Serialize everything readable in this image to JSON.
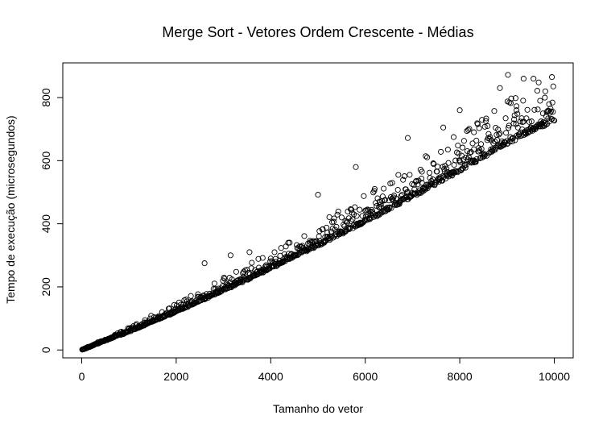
{
  "chart_data": {
    "type": "scatter",
    "title": "Merge Sort - Vetores Ordem Crescente - Médias",
    "xlabel": "Tamanho do vetor",
    "ylabel": "Tempo de execução (microsegundos)",
    "xlim": [
      -400,
      10400
    ],
    "ylim": [
      -25,
      910
    ],
    "x_ticks": [
      0,
      2000,
      4000,
      6000,
      8000,
      10000
    ],
    "y_ticks": [
      0,
      200,
      400,
      600,
      800
    ],
    "x_tick_labels": [
      "0",
      "2000",
      "4000",
      "6000",
      "8000",
      "10000"
    ],
    "y_tick_labels": [
      "0",
      "200",
      "400",
      "600",
      "800"
    ],
    "grid": false,
    "legend": "none",
    "marker": "open-circle",
    "x_range": [
      10,
      10000
    ],
    "x_step": 10,
    "series": [
      {
        "points": [
          [
            0,
            0
          ],
          [
            500,
            30
          ],
          [
            1000,
            58
          ],
          [
            1500,
            90
          ],
          [
            2000,
            120
          ],
          [
            2500,
            155
          ],
          [
            3000,
            188
          ],
          [
            3500,
            222
          ],
          [
            4000,
            258
          ],
          [
            4500,
            295
          ],
          [
            5000,
            330
          ],
          [
            5500,
            368
          ],
          [
            6000,
            405
          ],
          [
            6500,
            445
          ],
          [
            7000,
            485
          ],
          [
            7500,
            525
          ],
          [
            8000,
            565
          ],
          [
            8500,
            608
          ],
          [
            9000,
            650
          ],
          [
            9500,
            690
          ],
          [
            10000,
            725
          ],
          [
            2600,
            275
          ],
          [
            3150,
            300
          ],
          [
            3550,
            310
          ],
          [
            5000,
            492
          ],
          [
            5800,
            580
          ],
          [
            6900,
            672
          ],
          [
            7650,
            705
          ],
          [
            8000,
            760
          ],
          [
            8850,
            830
          ],
          [
            9020,
            872
          ],
          [
            9350,
            860
          ],
          [
            9560,
            860
          ],
          [
            9950,
            865
          ],
          [
            6300,
            470
          ],
          [
            7200,
            565
          ],
          [
            8400,
            640
          ],
          [
            9200,
            760
          ],
          [
            9800,
            800
          ],
          [
            4400,
            340
          ],
          [
            5500,
            420
          ],
          [
            6700,
            555
          ],
          [
            8300,
            690
          ],
          [
            9700,
            790
          ]
        ]
      }
    ]
  }
}
